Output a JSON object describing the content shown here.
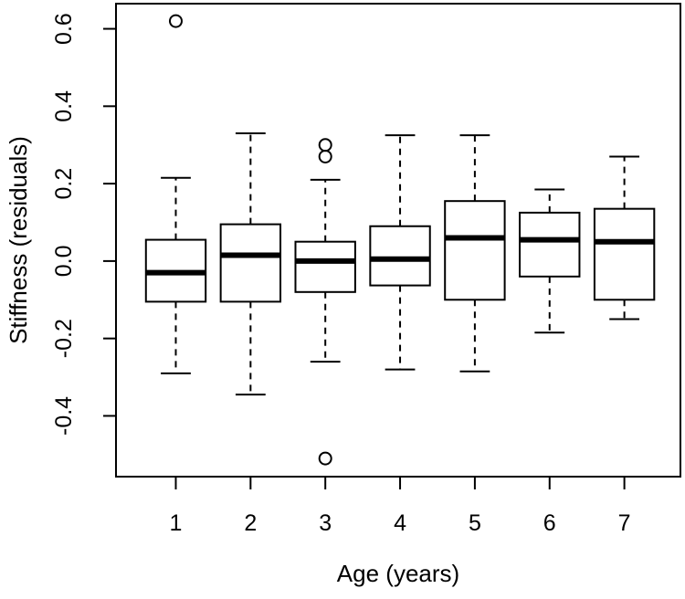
{
  "figure": {
    "background_color": "#ffffff",
    "line_color": "#000000",
    "fill_color": "#ffffff"
  },
  "chart_data": {
    "type": "boxplot",
    "title": "",
    "xlabel": "Age (years)",
    "ylabel": "Stiffness (residuals)",
    "categories": [
      "1",
      "2",
      "3",
      "4",
      "5",
      "6",
      "7"
    ],
    "y_ticks": [
      -0.4,
      -0.2,
      0.0,
      0.2,
      0.4,
      0.6
    ],
    "y_tick_labels": [
      "-0.4",
      "-0.2",
      "0.0",
      "0.2",
      "0.4",
      "0.6"
    ],
    "ylim": [
      -0.557,
      0.665
    ],
    "xlim": [
      0.2,
      7.75
    ],
    "grid": false,
    "legend": "none",
    "whisker_style": "dashed",
    "outlier_marker": "open-circle",
    "series": [
      {
        "category": "1",
        "whisker_low": -0.29,
        "q1": -0.105,
        "median": -0.03,
        "q3": 0.055,
        "whisker_high": 0.215,
        "outliers": [
          0.62
        ]
      },
      {
        "category": "2",
        "whisker_low": -0.345,
        "q1": -0.105,
        "median": 0.015,
        "q3": 0.095,
        "whisker_high": 0.33,
        "outliers": []
      },
      {
        "category": "3",
        "whisker_low": -0.26,
        "q1": -0.08,
        "median": 0.0,
        "q3": 0.05,
        "whisker_high": 0.21,
        "outliers": [
          0.3,
          0.27,
          -0.51
        ]
      },
      {
        "category": "4",
        "whisker_low": -0.28,
        "q1": -0.063,
        "median": 0.005,
        "q3": 0.09,
        "whisker_high": 0.325,
        "outliers": []
      },
      {
        "category": "5",
        "whisker_low": -0.285,
        "q1": -0.1,
        "median": 0.06,
        "q3": 0.155,
        "whisker_high": 0.325,
        "outliers": []
      },
      {
        "category": "6",
        "whisker_low": -0.185,
        "q1": -0.04,
        "median": 0.055,
        "q3": 0.125,
        "whisker_high": 0.185,
        "outliers": []
      },
      {
        "category": "7",
        "whisker_low": -0.15,
        "q1": -0.1,
        "median": 0.05,
        "q3": 0.135,
        "whisker_high": 0.27,
        "outliers": []
      }
    ]
  }
}
